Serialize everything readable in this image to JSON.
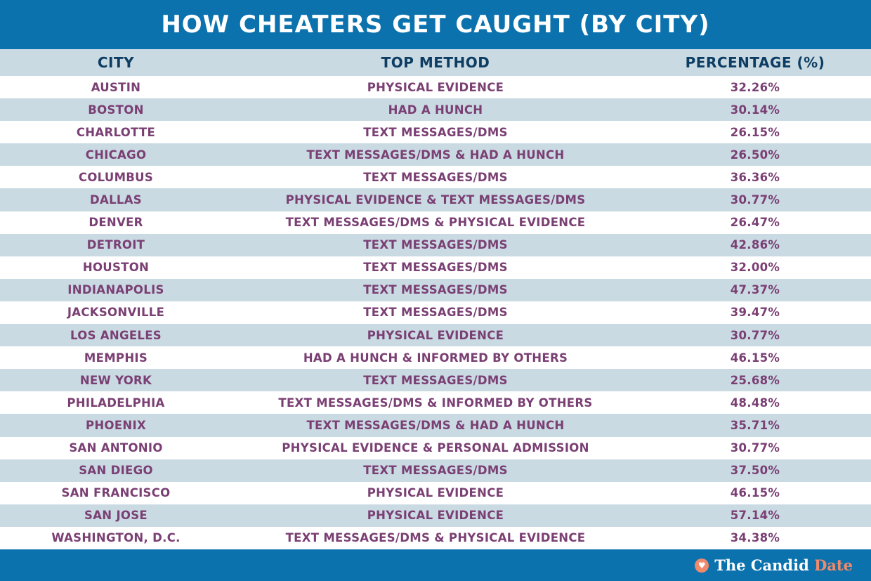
{
  "title": "HOW CHEATERS GET CAUGHT (BY CITY)",
  "brand": {
    "icon": "heart-icon",
    "name_part1": "The Candid",
    "name_part2": "Date",
    "accent_color": "#f08a6b"
  },
  "colors": {
    "title_bg": "#0b72ae",
    "stripe": "#c9dae3",
    "header_text": "#0d3d63",
    "row_text": "#7a3f73"
  },
  "chart_data": {
    "type": "table",
    "title": "HOW CHEATERS GET CAUGHT (BY CITY)",
    "columns": [
      "CITY",
      "TOP METHOD",
      "PERCENTAGE (%)"
    ],
    "rows": [
      {
        "city": "AUSTIN",
        "method": "PHYSICAL EVIDENCE",
        "percentage": "32.26%"
      },
      {
        "city": "BOSTON",
        "method": "HAD A HUNCH",
        "percentage": "30.14%"
      },
      {
        "city": "CHARLOTTE",
        "method": "TEXT MESSAGES/DMS",
        "percentage": "26.15%"
      },
      {
        "city": "CHICAGO",
        "method": "TEXT MESSAGES/DMS & HAD A HUNCH",
        "percentage": "26.50%"
      },
      {
        "city": "COLUMBUS",
        "method": "TEXT MESSAGES/DMS",
        "percentage": "36.36%"
      },
      {
        "city": "DALLAS",
        "method": "PHYSICAL EVIDENCE & TEXT MESSAGES/DMS",
        "percentage": "30.77%"
      },
      {
        "city": "DENVER",
        "method": "TEXT MESSAGES/DMS & PHYSICAL EVIDENCE",
        "percentage": "26.47%"
      },
      {
        "city": "DETROIT",
        "method": "TEXT MESSAGES/DMS",
        "percentage": "42.86%"
      },
      {
        "city": "HOUSTON",
        "method": "TEXT MESSAGES/DMS",
        "percentage": "32.00%"
      },
      {
        "city": "INDIANAPOLIS",
        "method": "TEXT MESSAGES/DMS",
        "percentage": "47.37%"
      },
      {
        "city": "JACKSONVILLE",
        "method": "TEXT MESSAGES/DMS",
        "percentage": "39.47%"
      },
      {
        "city": "LOS ANGELES",
        "method": "PHYSICAL EVIDENCE",
        "percentage": "30.77%"
      },
      {
        "city": "MEMPHIS",
        "method": "HAD A HUNCH & INFORMED BY OTHERS",
        "percentage": "46.15%"
      },
      {
        "city": "NEW YORK",
        "method": "TEXT MESSAGES/DMS",
        "percentage": "25.68%"
      },
      {
        "city": "PHILADELPHIA",
        "method": "TEXT MESSAGES/DMS & INFORMED BY OTHERS",
        "percentage": "48.48%"
      },
      {
        "city": "PHOENIX",
        "method": "TEXT MESSAGES/DMS & HAD A HUNCH",
        "percentage": "35.71%"
      },
      {
        "city": "SAN ANTONIO",
        "method": "PHYSICAL EVIDENCE & PERSONAL ADMISSION",
        "percentage": "30.77%"
      },
      {
        "city": "SAN DIEGO",
        "method": "TEXT MESSAGES/DMS",
        "percentage": "37.50%"
      },
      {
        "city": "SAN FRANCISCO",
        "method": "PHYSICAL EVIDENCE",
        "percentage": "46.15%"
      },
      {
        "city": "SAN JOSE",
        "method": "PHYSICAL EVIDENCE",
        "percentage": "57.14%"
      },
      {
        "city": "WASHINGTON, D.C.",
        "method": "TEXT MESSAGES/DMS & PHYSICAL EVIDENCE",
        "percentage": "34.38%"
      }
    ]
  }
}
